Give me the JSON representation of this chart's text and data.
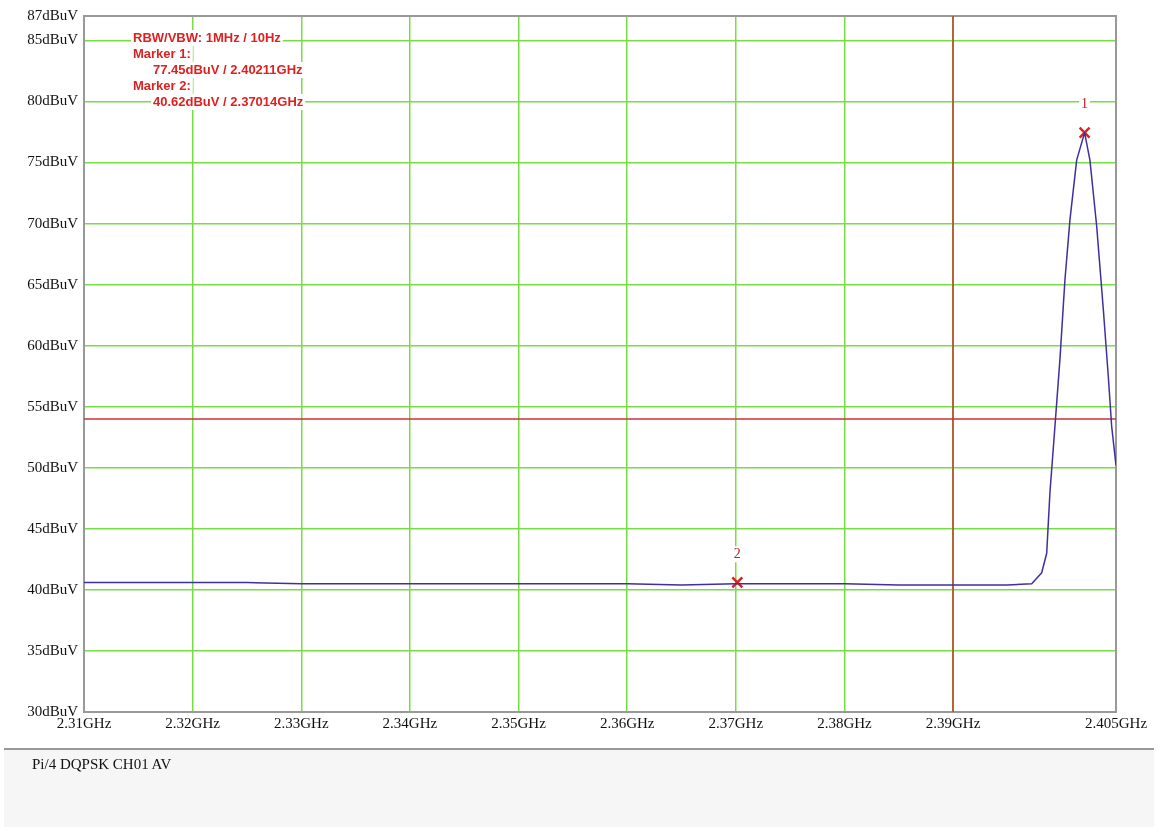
{
  "chart_data": {
    "type": "line",
    "annotations": [
      "RBW/VBW: 1MHz / 10Hz",
      "Marker 1:",
      "77.45dBuV / 2.40211GHz",
      "Marker 2:",
      "40.62dBuV / 2.37014GHz",
      {
        "text": "1",
        "x": 2.40211,
        "y": 77.45
      },
      {
        "text": "2",
        "x": 2.37014,
        "y": 40.62
      },
      "Pi/4 DQPSK CH01 AV"
    ],
    "series": [
      {
        "type": "line",
        "color": "#3f2f9f",
        "x": [
          2.31,
          2.315,
          2.32,
          2.325,
          2.33,
          2.335,
          2.34,
          2.345,
          2.35,
          2.355,
          2.36,
          2.365,
          2.37,
          2.375,
          2.38,
          2.385,
          2.39,
          2.395,
          2.39724,
          2.39816,
          2.39862,
          2.39892,
          2.39938,
          2.39984,
          2.4003,
          2.40076,
          2.40138,
          2.40211,
          2.4026,
          2.40322,
          2.40383,
          2.40429,
          2.4046,
          2.405
        ],
        "values": [
          40.6,
          40.6,
          40.6,
          40.6,
          40.5,
          40.5,
          40.5,
          40.5,
          40.5,
          40.5,
          40.5,
          40.4,
          40.5,
          40.5,
          40.5,
          40.4,
          40.4,
          40.4,
          40.5,
          41.4,
          43,
          48,
          53.4,
          58.9,
          65.4,
          70.3,
          75.2,
          77.45,
          75.2,
          69.8,
          63,
          57.5,
          53.4,
          50.2
        ]
      },
      {
        "type": "scatter",
        "color": "#dd2222",
        "marker": "cross",
        "x": [
          2.40211,
          2.37014
        ],
        "values": [
          77.45,
          40.62
        ]
      }
    ],
    "xlim": [
      2.31,
      2.405
    ],
    "xticks": [
      {
        "value": 2.31,
        "label": "2.31GHz"
      },
      {
        "value": 2.32,
        "label": "2.32GHz"
      },
      {
        "value": 2.33,
        "label": "2.33GHz"
      },
      {
        "value": 2.34,
        "label": "2.34GHz"
      },
      {
        "value": 2.35,
        "label": "2.35GHz"
      },
      {
        "value": 2.36,
        "label": "2.36GHz"
      },
      {
        "value": 2.37,
        "label": "2.37GHz"
      },
      {
        "value": 2.38,
        "label": "2.38GHz"
      },
      {
        "value": 2.39,
        "label": "2.39GHz"
      },
      {
        "value": 2.405,
        "label": "2.405GHz"
      }
    ],
    "ylim": [
      30,
      87
    ],
    "yticks": [
      {
        "value": 30,
        "label": "30dBuV"
      },
      {
        "value": 35,
        "label": "35dBuV"
      },
      {
        "value": 40,
        "label": "40dBuV"
      },
      {
        "value": 45,
        "label": "45dBuV"
      },
      {
        "value": 50,
        "label": "50dBuV"
      },
      {
        "value": 55,
        "label": "55dBuV"
      },
      {
        "value": 60,
        "label": "60dBuV"
      },
      {
        "value": 65,
        "label": "65dBuV"
      },
      {
        "value": 70,
        "label": "70dBuV"
      },
      {
        "value": 75,
        "label": "75dBuV"
      },
      {
        "value": 80,
        "label": "80dBuV"
      },
      {
        "value": 85,
        "label": "85dBuV"
      },
      {
        "value": 87,
        "label": "87dBuV"
      }
    ],
    "ref_lines": [
      {
        "axis": "y",
        "value": 54,
        "color": "#cc3333"
      },
      {
        "axis": "x",
        "value": 2.39,
        "color": "#cc3333"
      }
    ],
    "grid": true,
    "legend": false
  }
}
